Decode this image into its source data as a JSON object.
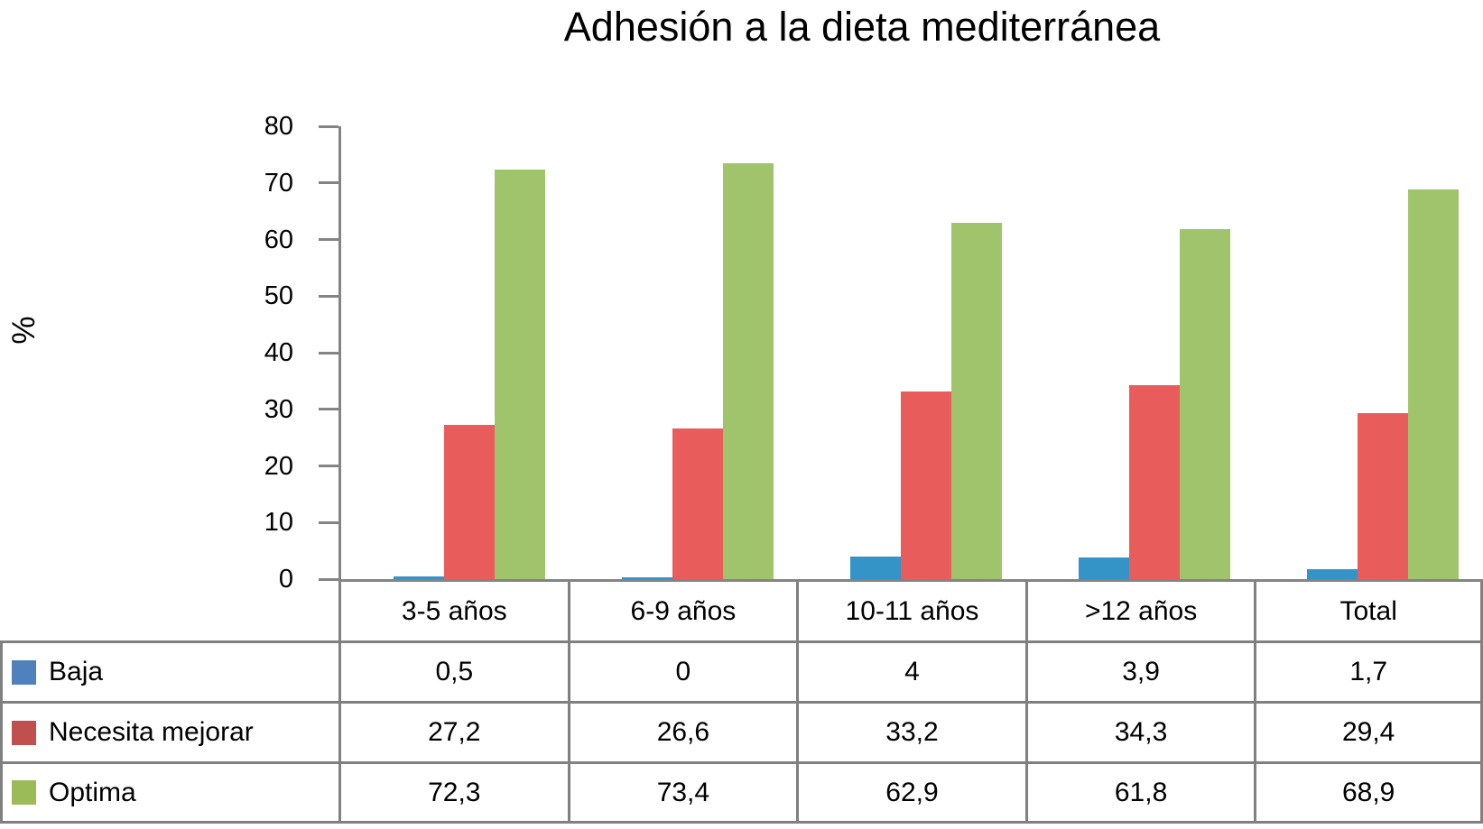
{
  "title": "Adhesión a la dieta mediterránea",
  "axis_color": "#848484",
  "table_border_color": "#808080",
  "chart_data": {
    "type": "bar",
    "title": "Adhesión a la dieta mediterránea",
    "xlabel": "",
    "ylabel": "%",
    "ylim": [
      0,
      80
    ],
    "ytick_step": 10,
    "ytick_labels": [
      "0",
      "10",
      "20",
      "30",
      "40",
      "50",
      "60",
      "70",
      "80"
    ],
    "grid": false,
    "legend_position": "table-left",
    "categories": [
      "3-5 años",
      "6-9 años",
      "10-11 años",
      ">12 años",
      "Total"
    ],
    "series": [
      {
        "name": "Baja",
        "color": "#3494C7",
        "legend_color": "#4F81BD",
        "values": [
          0.5,
          0,
          4,
          3.9,
          1.7
        ],
        "display_values": [
          "0,5",
          "0",
          "4",
          "3,9",
          "1,7"
        ]
      },
      {
        "name": "Necesita mejorar",
        "color": "#E85C5C",
        "legend_color": "#C0504D",
        "values": [
          27.2,
          26.6,
          33.2,
          34.3,
          29.4
        ],
        "display_values": [
          "27,2",
          "26,6",
          "33,2",
          "34,3",
          "29,4"
        ]
      },
      {
        "name": "Optima",
        "color": "#A0C46B",
        "legend_color": "#9BBB59",
        "values": [
          72.3,
          73.4,
          62.9,
          61.8,
          68.9
        ],
        "display_values": [
          "72,3",
          "73,4",
          "62,9",
          "61,8",
          "68,9"
        ]
      }
    ]
  }
}
